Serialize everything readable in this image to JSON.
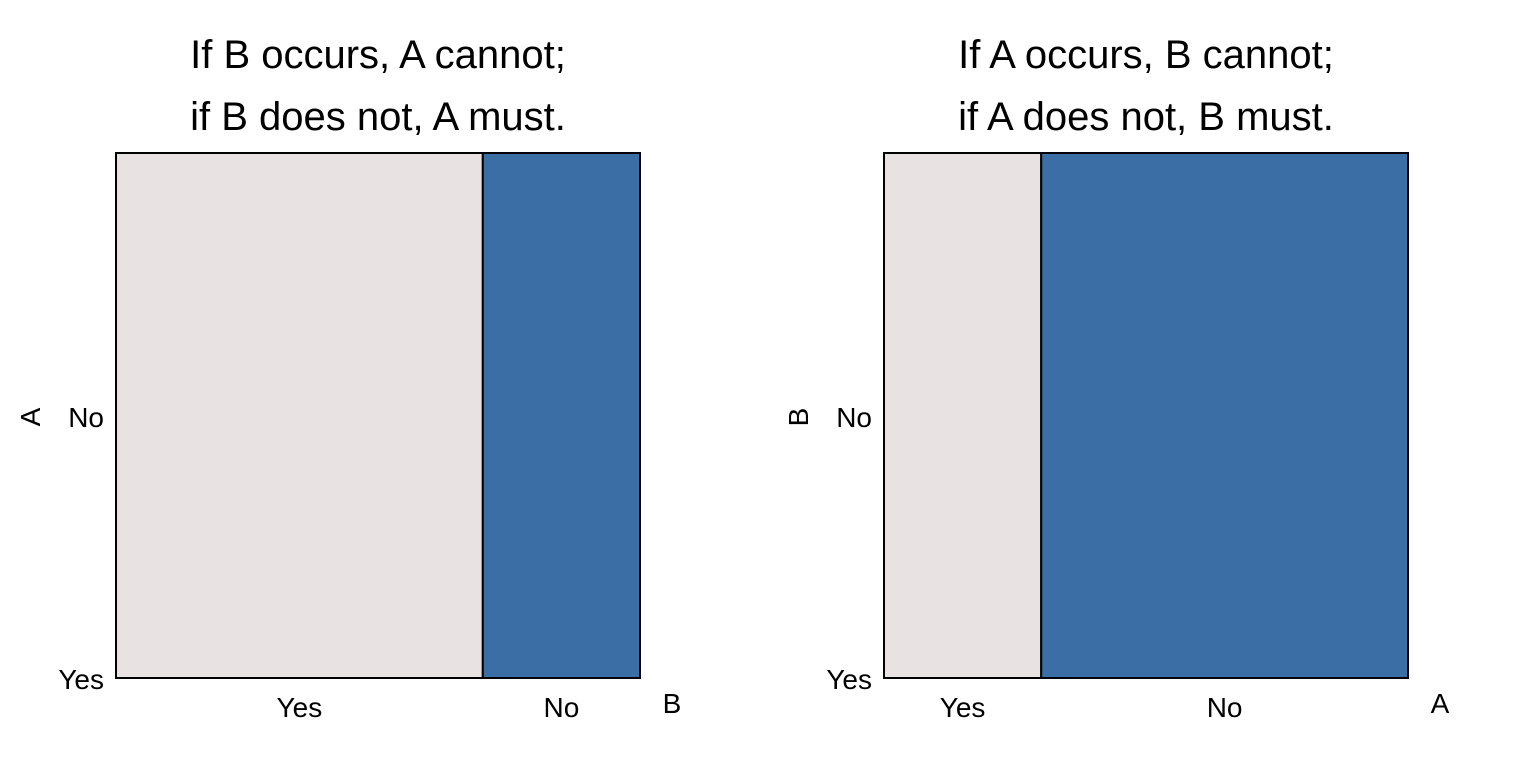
{
  "chart_data": [
    {
      "type": "mosaic",
      "title_lines": [
        "If B occurs, A cannot;",
        "if B does not, A must."
      ],
      "xlabel": "B",
      "ylabel": "A",
      "x_categories": [
        "Yes",
        "No"
      ],
      "y_categories": [
        "Yes",
        "No"
      ],
      "x_proportions": [
        0.7,
        0.3
      ],
      "cells": [
        {
          "x": "Yes",
          "y": "No",
          "proportion_of_column": 1.0,
          "color": "#e8e2e2"
        },
        {
          "x": "No",
          "y": "Yes",
          "proportion_of_column": 1.0,
          "color": "#3a6ea5"
        }
      ]
    },
    {
      "type": "mosaic",
      "title_lines": [
        "If A occurs, B cannot;",
        "if A does not, B must."
      ],
      "xlabel": "A",
      "ylabel": "B",
      "x_categories": [
        "Yes",
        "No"
      ],
      "y_categories": [
        "Yes",
        "No"
      ],
      "x_proportions": [
        0.3,
        0.7
      ],
      "cells": [
        {
          "x": "Yes",
          "y": "No",
          "proportion_of_column": 1.0,
          "color": "#e8e2e2"
        },
        {
          "x": "No",
          "y": "Yes",
          "proportion_of_column": 1.0,
          "color": "#3a6ea5"
        }
      ]
    }
  ]
}
